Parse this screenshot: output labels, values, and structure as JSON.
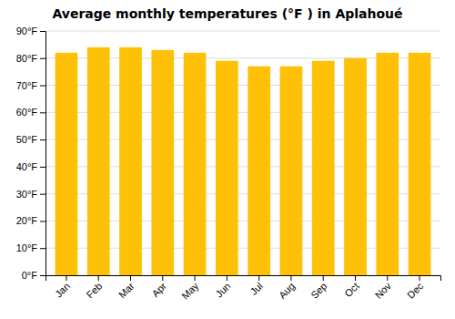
{
  "chart_data": {
    "type": "bar",
    "title": "Average monthly temperatures (°F ) in Aplahoué",
    "categories": [
      "Jan",
      "Feb",
      "Mar",
      "Apr",
      "May",
      "Jun",
      "Jul",
      "Aug",
      "Sep",
      "Oct",
      "Nov",
      "Dec"
    ],
    "values": [
      82,
      84,
      84,
      83,
      82,
      79,
      77,
      77,
      79,
      80,
      82,
      82
    ],
    "color": "#FFC107",
    "ylim": [
      0,
      90
    ],
    "yticks": [
      {
        "value": 0,
        "label": "0°F"
      },
      {
        "value": 10,
        "label": "10°F"
      },
      {
        "value": 20,
        "label": "20°F"
      },
      {
        "value": 30,
        "label": "30°F"
      },
      {
        "value": 40,
        "label": "40°F"
      },
      {
        "value": 50,
        "label": "50°F"
      },
      {
        "value": 60,
        "label": "60°F"
      },
      {
        "value": 70,
        "label": "70°F"
      },
      {
        "value": 80,
        "label": "80°F"
      },
      {
        "value": 90,
        "label": "90°F"
      }
    ],
    "grid": true
  }
}
